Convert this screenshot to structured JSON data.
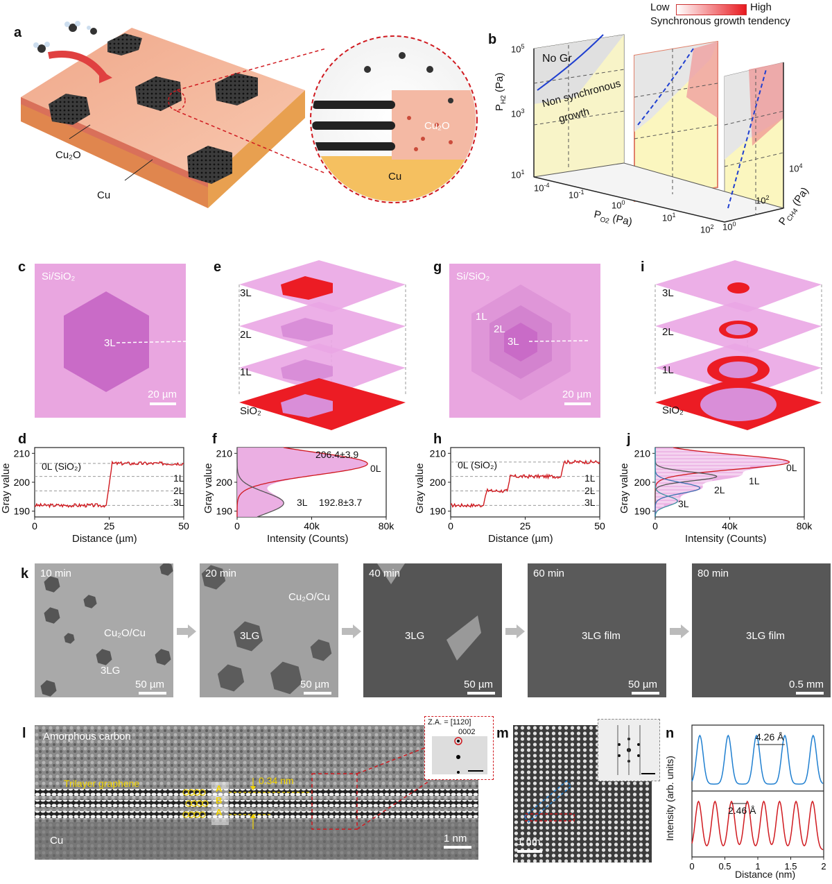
{
  "panels": {
    "a": {
      "letter": "a",
      "labels": {
        "cu2o": "Cu₂O",
        "cu": "Cu",
        "cu_zoom": "Cu",
        "cu2o_zoom": "Cu₂O"
      }
    },
    "b": {
      "letter": "b",
      "legend_low": "Low",
      "legend_high": "High",
      "legend_title": "Synchronous growth tendency",
      "region_no_gr": "No Gr",
      "region_non_sync_1": "Non synchronous",
      "region_non_sync_2": "growth",
      "ylabel": "P",
      "ylabel_sub": "H2",
      "ylabel_unit": "(Pa)",
      "xlabel": "P",
      "xlabel_sub": "O2",
      "xlabel_unit": "(Pa)",
      "zlabel": "P",
      "zlabel_sub": "CH4",
      "zlabel_unit": "(Pa)",
      "y_ticks": [
        "10",
        "10",
        "10"
      ],
      "y_tick_exp": [
        "5",
        "3",
        "1"
      ],
      "x_ticks": [
        "10",
        "10",
        "10",
        "10",
        "10"
      ],
      "x_tick_exp": [
        "-4",
        "-1",
        "0",
        "1",
        "2"
      ],
      "z_ticks": [
        "10",
        "10",
        "10"
      ],
      "z_tick_exp": [
        "0",
        "2",
        "4"
      ]
    },
    "c": {
      "letter": "c",
      "substrate": "Si/SiO₂",
      "layer": "3L",
      "scalebar": "20 µm"
    },
    "e": {
      "letter": "e",
      "layers": [
        "3L",
        "2L",
        "1L",
        "SiO₂"
      ]
    },
    "g": {
      "letter": "g",
      "substrate": "Si/SiO₂",
      "l1": "1L",
      "l2": "2L",
      "l3": "3L",
      "scalebar": "20 µm"
    },
    "i": {
      "letter": "i",
      "layers": [
        "3L",
        "2L",
        "1L",
        "SiO₂"
      ]
    },
    "d": {
      "letter": "d",
      "ylabel": "Gray value",
      "xlabel": "Distance (µm)",
      "ref_0L": "0L (SiO₂)",
      "ref_1L": "1L",
      "ref_2L": "2L",
      "ref_3L": "3L",
      "x_ticks": [
        "0",
        "25",
        "50"
      ],
      "y_ticks": [
        "190",
        "200",
        "210"
      ]
    },
    "f": {
      "letter": "f",
      "ylabel": "Gray value",
      "xlabel": "Intensity (Counts)",
      "peak_0L": "206.4±3.9",
      "peak_3L": "192.8±3.7",
      "lbl_0L": "0L",
      "lbl_3L": "3L",
      "x_ticks": [
        "0",
        "40k",
        "80k"
      ],
      "y_ticks": [
        "190",
        "200",
        "210"
      ]
    },
    "h": {
      "letter": "h",
      "ylabel": "Gray value",
      "xlabel": "Distance (µm)",
      "ref_0L": "0L (SiO₂)",
      "ref_1L": "1L",
      "ref_2L": "2L",
      "ref_3L": "3L",
      "x_ticks": [
        "0",
        "25",
        "50"
      ],
      "y_ticks": [
        "190",
        "200",
        "210"
      ]
    },
    "j": {
      "letter": "j",
      "ylabel": "Gray value",
      "xlabel": "Intensity (Counts)",
      "lbl_0L": "0L",
      "lbl_1L": "1L",
      "lbl_2L": "2L",
      "lbl_3L": "3L",
      "x_ticks": [
        "0",
        "40k",
        "80k"
      ],
      "y_ticks": [
        "190",
        "200",
        "210"
      ]
    },
    "k": {
      "letter": "k",
      "frames": [
        {
          "time": "10 min",
          "label1": "Cu₂O/Cu",
          "label2": "3LG",
          "scalebar": "50 µm"
        },
        {
          "time": "20 min",
          "label1": "Cu₂O/Cu",
          "label2": "3LG",
          "scalebar": "50 µm"
        },
        {
          "time": "40 min",
          "label1": "3LG",
          "scalebar": "50 µm"
        },
        {
          "time": "60 min",
          "label1": "3LG film",
          "scalebar": "50 µm"
        },
        {
          "time": "80 min",
          "label1": "3LG film",
          "scalebar": "0.5 mm"
        }
      ]
    },
    "l": {
      "letter": "l",
      "amorphous": "Amorphous carbon",
      "trilayer": "Trilayer graphene",
      "spacing": "0.34 nm",
      "stack": [
        "A",
        "B",
        "A"
      ],
      "cu": "Cu",
      "scalebar": "1 nm",
      "za": "Z.A. = [1120]",
      "spot": "0002"
    },
    "m": {
      "letter": "m",
      "scalebar": "1 nm"
    },
    "n": {
      "letter": "n",
      "ylabel": "Intensity (arb. units)",
      "xlabel": "Distance (nm)",
      "top_spacing": "4.26 Å",
      "bottom_spacing": "2.46 Å",
      "x_ticks": [
        "0",
        "0.5",
        "1",
        "1.5",
        "2"
      ]
    }
  },
  "colors": {
    "blue": "#1f7fd0",
    "red": "#d0191f",
    "pink": "#e9a6e0",
    "darkpink": "#c96bc7",
    "yellowregion": "#fbf6bf"
  },
  "chart_data": [
    {
      "type": "line",
      "panel": "d",
      "xlabel": "Distance (µm)",
      "ylabel": "Gray value",
      "xlim": [
        0,
        50
      ],
      "ylim": [
        188,
        212
      ],
      "series": [
        {
          "values_x": [
            0,
            24,
            26,
            50
          ],
          "values_y": [
            192,
            192,
            206.5,
            206.5
          ]
        }
      ],
      "ref_lines": {
        "0L (SiO₂)": 206.5,
        "1L": 202,
        "2L": 197,
        "3L": 192
      }
    },
    {
      "type": "area",
      "panel": "f",
      "xlabel": "Intensity (Counts)",
      "ylabel": "Gray value",
      "xlim": [
        0,
        80000
      ],
      "ylim": [
        188,
        212
      ],
      "peaks": [
        {
          "label": "0L",
          "center": 206.4,
          "sigma": 3.9,
          "height": 70000
        },
        {
          "label": "3L",
          "center": 192.8,
          "sigma": 3.7,
          "height": 25000
        }
      ]
    },
    {
      "type": "line",
      "panel": "h",
      "xlabel": "Distance (µm)",
      "ylabel": "Gray value",
      "xlim": [
        0,
        50
      ],
      "ylim": [
        188,
        212
      ],
      "series": [
        {
          "values_x": [
            0,
            11,
            12,
            19,
            20,
            37,
            38,
            50
          ],
          "values_y": [
            192,
            192,
            197,
            197,
            202,
            202,
            207,
            207
          ]
        }
      ],
      "ref_lines": {
        "0L (SiO₂)": 207,
        "1L": 202,
        "2L": 197,
        "3L": 192
      }
    },
    {
      "type": "area",
      "panel": "j",
      "xlabel": "Intensity (Counts)",
      "ylabel": "Gray value",
      "xlim": [
        0,
        80000
      ],
      "ylim": [
        188,
        212
      ],
      "peaks": [
        {
          "label": "0L",
          "center": 207,
          "sigma": 2.5,
          "height": 72000
        },
        {
          "label": "1L",
          "center": 202,
          "sigma": 1.5,
          "height": 33000
        },
        {
          "label": "2L",
          "center": 198,
          "sigma": 1.8,
          "height": 24000
        },
        {
          "label": "3L",
          "center": 193.5,
          "sigma": 1.6,
          "height": 12000
        }
      ]
    },
    {
      "type": "line",
      "panel": "n-top",
      "xlabel": "Distance (nm)",
      "xlim": [
        0,
        2
      ],
      "peak_spacing": 0.426,
      "peak_positions": [
        0.12,
        0.55,
        0.98,
        1.41,
        1.84
      ]
    },
    {
      "type": "line",
      "panel": "n-bottom",
      "xlabel": "Distance (nm)",
      "xlim": [
        0,
        2
      ],
      "peak_spacing": 0.246,
      "peak_positions": [
        0.1,
        0.35,
        0.6,
        0.84,
        1.09,
        1.33,
        1.58,
        1.83
      ]
    }
  ]
}
